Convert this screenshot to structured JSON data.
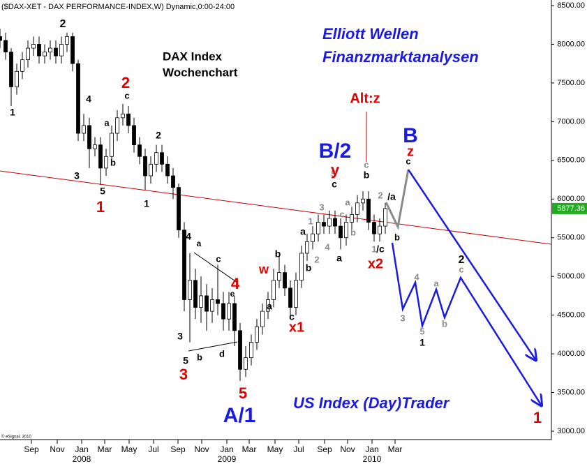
{
  "chart_data": {
    "type": "candlestick",
    "title": "($DAX-XET - DAX PERFORMANCE-INDEX,W) Dynamic,0:00-24:00",
    "copyright": "© eSignal, 2010",
    "texts": [
      "Elliott Wellen",
      "Finanzmarktanalysen",
      "DAX Index",
      "Wochenchart",
      "US Index (Day)Trader"
    ],
    "xlim": [
      0,
      197.5
    ],
    "ylim": [
      3000,
      8500
    ],
    "yticks": [
      {
        "value": 3000,
        "label": "3000.00"
      },
      {
        "value": 3500,
        "label": "3500.00"
      },
      {
        "value": 4000,
        "label": "4000.00"
      },
      {
        "value": 4500,
        "label": "4500.00"
      },
      {
        "value": 5000,
        "label": "5000.00"
      },
      {
        "value": 5500,
        "label": "5500.00"
      },
      {
        "value": 6000,
        "label": "6000.00"
      },
      {
        "value": 6500,
        "label": "6500.00"
      },
      {
        "value": 7000,
        "label": "7000.00"
      },
      {
        "value": 7500,
        "label": "7500.00"
      },
      {
        "value": 8000,
        "label": "8000.00"
      },
      {
        "value": 8500,
        "label": "8500.00"
      }
    ],
    "xticks": [
      {
        "value": 11.25,
        "label": "Sep"
      },
      {
        "value": 20.5,
        "label": "Nov"
      },
      {
        "value": 29.25,
        "label": "Jan"
      },
      {
        "value": 37.5,
        "label": "Mar"
      },
      {
        "value": 46.25,
        "label": "May"
      },
      {
        "value": 55,
        "label": "Jul"
      },
      {
        "value": 63.75,
        "label": "Sep"
      },
      {
        "value": 72.25,
        "label": "Nov"
      },
      {
        "value": 81.25,
        "label": "Jan"
      },
      {
        "value": 89.25,
        "label": "Mar"
      },
      {
        "value": 98.5,
        "label": "May"
      },
      {
        "value": 107,
        "label": "Jul"
      },
      {
        "value": 116.25,
        "label": "Sep"
      },
      {
        "value": 124.5,
        "label": "Nov"
      },
      {
        "value": 133.25,
        "label": "Jan"
      },
      {
        "value": 141.5,
        "label": "Mar"
      }
    ],
    "year_labels": [
      {
        "value": 29.25,
        "label": "2008"
      },
      {
        "value": 81.25,
        "label": "2009"
      },
      {
        "value": 133.25,
        "label": "2010"
      }
    ],
    "series": {
      "up_color": "#ffffff",
      "down_color": "#000000",
      "x": [
        0,
        2,
        4,
        6,
        8,
        10,
        12,
        14,
        16,
        18,
        20,
        22,
        24,
        26,
        28,
        30,
        32,
        34,
        36,
        38,
        40,
        42,
        44,
        46,
        48,
        50,
        52,
        54,
        56,
        58,
        60,
        62,
        64,
        66,
        68,
        70,
        72,
        74,
        76,
        78,
        80,
        82,
        84,
        86,
        88,
        90,
        92,
        94,
        96,
        98,
        100,
        102,
        104,
        106,
        108,
        110,
        112,
        114,
        116,
        118,
        120,
        122,
        124,
        126,
        128,
        130,
        132,
        134,
        136,
        138
      ],
      "open": [
        8100,
        8050,
        7900,
        7450,
        7650,
        7800,
        7950,
        8000,
        7850,
        7900,
        7950,
        7850,
        8000,
        8100,
        7750,
        6850,
        6950,
        6650,
        6700,
        6400,
        6550,
        6850,
        7050,
        7100,
        6950,
        6700,
        6550,
        6300,
        6450,
        6600,
        6450,
        6300,
        6150,
        5600,
        4700,
        4950,
        4600,
        4750,
        4550,
        4700,
        4650,
        4450,
        4650,
        4300,
        3800,
        3950,
        4150,
        4350,
        4550,
        4700,
        4950,
        5050,
        4850,
        4600,
        4950,
        5300,
        5450,
        5550,
        5700,
        5650,
        5750,
        5650,
        5500,
        5700,
        5800,
        5950,
        6000,
        5700,
        5550,
        5650
      ],
      "high": [
        8200,
        8150,
        7950,
        7750,
        7900,
        8050,
        8100,
        8100,
        8000,
        8050,
        8050,
        8100,
        8150,
        8150,
        7800,
        7100,
        7050,
        6800,
        6800,
        6650,
        6950,
        7150,
        7230,
        7200,
        7050,
        6800,
        6650,
        6550,
        6700,
        6700,
        6550,
        6400,
        6200,
        5700,
        5300,
        5100,
        5000,
        4900,
        4850,
        5150,
        4800,
        4800,
        4750,
        4400,
        4100,
        4250,
        4450,
        4650,
        4800,
        5100,
        5250,
        5150,
        4950,
        5050,
        5400,
        5550,
        5650,
        5800,
        5800,
        5850,
        5850,
        5750,
        5800,
        5900,
        6050,
        6100,
        6100,
        5800,
        5750,
        5950
      ],
      "low": [
        7950,
        7800,
        7200,
        7350,
        7550,
        7700,
        7850,
        7750,
        7750,
        7800,
        7750,
        7750,
        7900,
        7650,
        6750,
        6750,
        6400,
        6550,
        6180,
        6300,
        6450,
        6750,
        6950,
        6850,
        6600,
        6450,
        6120,
        6200,
        6350,
        6350,
        6200,
        6000,
        5500,
        4550,
        4150,
        4450,
        4400,
        4300,
        4400,
        4500,
        4300,
        4300,
        4100,
        3650,
        3700,
        3850,
        4050,
        4250,
        4450,
        4600,
        4850,
        4750,
        4450,
        4500,
        4850,
        5200,
        5350,
        5450,
        5550,
        5550,
        5550,
        5350,
        5400,
        5600,
        5700,
        5850,
        5600,
        5450,
        5450,
        5550
      ],
      "close": [
        8050,
        7900,
        7450,
        7650,
        7800,
        7950,
        8000,
        7850,
        7900,
        7950,
        7850,
        8000,
        8100,
        7750,
        6850,
        6950,
        6650,
        6700,
        6400,
        6550,
        6850,
        7050,
        7100,
        6950,
        6700,
        6550,
        6300,
        6450,
        6600,
        6450,
        6300,
        6150,
        5600,
        4700,
        4950,
        4600,
        4750,
        4550,
        4700,
        4650,
        4450,
        4650,
        4300,
        3800,
        3950,
        4150,
        4350,
        4550,
        4700,
        4950,
        5050,
        4850,
        4600,
        4950,
        5300,
        5450,
        5550,
        5700,
        5650,
        5750,
        5650,
        5500,
        5700,
        5800,
        5950,
        6000,
        5700,
        5550,
        5650,
        5877.36
      ]
    },
    "last_price_color": "#22aa22",
    "lines": [
      {
        "color": "#cc0000",
        "x": [
          0,
          197.5
        ],
        "y": [
          6363,
          5416
        ]
      },
      {
        "color": "#cc0000",
        "x": [
          131.25,
          131.25
        ],
        "y": [
          7130,
          6480
        ]
      },
      {
        "color": "#000000",
        "x": [
          69.5,
          85
        ],
        "y": [
          5308,
          4921
        ]
      },
      {
        "color": "#000000",
        "x": [
          67.5,
          85
        ],
        "y": [
          4037,
          4154
        ]
      }
    ],
    "projections": [
      {
        "color": "#8a8a8a",
        "x": [
          138.25,
          142.5,
          146.25
        ],
        "y": [
          5958,
          5642,
          6381
        ]
      },
      {
        "color": "#1a1ae0",
        "x": [
          146.25,
          191.75
        ],
        "y": [
          6381,
          3929
        ]
      },
      {
        "color": "#1a1ae0",
        "x": [
          140.5,
          144.25,
          148.75,
          151.25,
          156.25,
          159.25,
          165,
          193.75
        ],
        "y": [
          5435,
          4578,
          4921,
          4362,
          4831,
          4470,
          4984,
          3343
        ]
      }
    ],
    "annotations": [
      {
        "text": "2",
        "color": "#000000"
      },
      {
        "text": "1",
        "color": "#000000"
      },
      {
        "text": "4",
        "color": "#000000"
      },
      {
        "text": "a",
        "color": "#000000"
      },
      {
        "text": "c",
        "color": "#000000"
      },
      {
        "text": "2",
        "color": "#e00000"
      },
      {
        "text": "b",
        "color": "#000000"
      },
      {
        "text": "3",
        "color": "#000000"
      },
      {
        "text": "5",
        "color": "#000000"
      },
      {
        "text": "1",
        "color": "#e00000"
      },
      {
        "text": "2",
        "color": "#000000"
      },
      {
        "text": "1",
        "color": "#000000"
      },
      {
        "text": "4",
        "color": "#000000"
      },
      {
        "text": "a",
        "color": "#000000"
      },
      {
        "text": "c",
        "color": "#000000"
      },
      {
        "text": "4",
        "color": "#e00000"
      },
      {
        "text": "e",
        "color": "#000000"
      },
      {
        "text": "3",
        "color": "#000000"
      },
      {
        "text": "5",
        "color": "#000000"
      },
      {
        "text": "b",
        "color": "#000000"
      },
      {
        "text": "d",
        "color": "#000000"
      },
      {
        "text": "3",
        "color": "#e00000"
      },
      {
        "text": "5",
        "color": "#e00000"
      },
      {
        "text": "A/1",
        "color": "#1a1ae0"
      },
      {
        "text": "w",
        "color": "#e00000"
      },
      {
        "text": "b",
        "color": "#000000"
      },
      {
        "text": "a",
        "color": "#000000"
      },
      {
        "text": "c",
        "color": "#000000"
      },
      {
        "text": "x1",
        "color": "#e00000"
      },
      {
        "text": "a",
        "color": "#000000"
      },
      {
        "text": "b",
        "color": "#000000"
      },
      {
        "text": "2",
        "color": "#8a8a8a"
      },
      {
        "text": "1",
        "color": "#8a8a8a"
      },
      {
        "text": "4",
        "color": "#8a8a8a"
      },
      {
        "text": "3",
        "color": "#8a8a8a"
      },
      {
        "text": "a",
        "color": "#000000"
      },
      {
        "text": "5",
        "color": "#8a8a8a"
      },
      {
        "text": "c",
        "color": "#000000"
      },
      {
        "text": "y",
        "color": "#e00000"
      },
      {
        "text": "B/2",
        "color": "#1a1ae0"
      },
      {
        "text": "a",
        "color": "#8a8a8a"
      },
      {
        "text": "c",
        "color": "#8a8a8a"
      },
      {
        "text": "b",
        "color": "#8a8a8a"
      },
      {
        "text": "c",
        "color": "#8a8a8a"
      },
      {
        "text": "b",
        "color": "#000000"
      },
      {
        "text": "Alt:z",
        "color": "#e00000"
      },
      {
        "text": "2",
        "color": "#8a8a8a"
      },
      {
        "text": "/a",
        "color": "#000000"
      },
      {
        "text": "b",
        "color": "#000000"
      },
      {
        "text": "1",
        "color": "#8a8a8a"
      },
      {
        "text": "/c",
        "color": "#000000"
      },
      {
        "text": "x2",
        "color": "#e00000"
      },
      {
        "text": "B",
        "color": "#1a1ae0"
      },
      {
        "text": "z",
        "color": "#e00000"
      },
      {
        "text": "c",
        "color": "#000000"
      },
      {
        "text": "3",
        "color": "#8a8a8a"
      },
      {
        "text": "4",
        "color": "#8a8a8a"
      },
      {
        "text": "5",
        "color": "#8a8a8a"
      },
      {
        "text": "1",
        "color": "#000000"
      },
      {
        "text": "a",
        "color": "#8a8a8a"
      },
      {
        "text": "b",
        "color": "#8a8a8a"
      },
      {
        "text": "2",
        "color": "#000000"
      },
      {
        "text": "c",
        "color": "#8a8a8a"
      },
      {
        "text": "1",
        "color": "#e00000"
      }
    ]
  }
}
